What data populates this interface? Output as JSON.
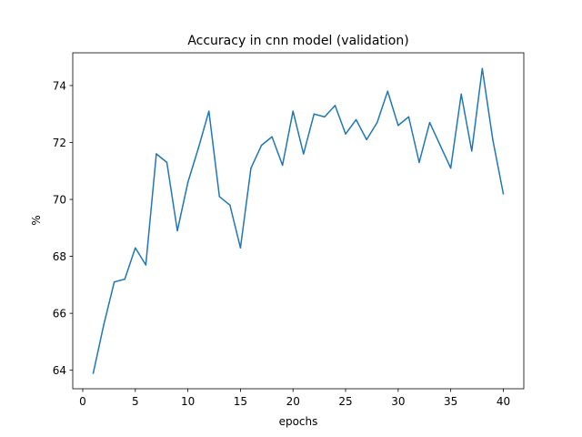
{
  "chart_data": {
    "type": "line",
    "title": "Accuracy in cnn model (validation)",
    "xlabel": "epochs",
    "ylabel": "%",
    "xlim": [
      -0.95,
      41.95
    ],
    "ylim": [
      63.35,
      75.15
    ],
    "xticks": [
      0,
      5,
      10,
      15,
      20,
      25,
      30,
      35,
      40
    ],
    "yticks": [
      64,
      66,
      68,
      70,
      72,
      74
    ],
    "grid": false,
    "series_color": "#1f77b4",
    "series": [
      {
        "x": [
          1,
          2,
          3,
          4,
          5,
          6,
          7,
          8,
          9,
          10,
          11,
          12,
          13,
          14,
          15,
          16,
          17,
          18,
          19,
          20,
          21,
          22,
          23,
          24,
          25,
          26,
          27,
          28,
          29,
          30,
          31,
          32,
          33,
          34,
          35,
          36,
          37,
          38,
          39,
          40
        ],
        "values": [
          63.9,
          65.6,
          67.1,
          67.2,
          68.3,
          67.7,
          71.6,
          71.3,
          68.9,
          70.6,
          71.8,
          73.1,
          70.1,
          69.8,
          68.3,
          71.1,
          71.9,
          72.2,
          71.2,
          73.1,
          71.6,
          73.0,
          72.9,
          73.3,
          72.3,
          72.8,
          72.1,
          72.7,
          73.8,
          72.6,
          72.9,
          71.3,
          72.7,
          71.9,
          71.1,
          73.7,
          71.7,
          74.6,
          72.1,
          70.2
        ]
      }
    ]
  }
}
